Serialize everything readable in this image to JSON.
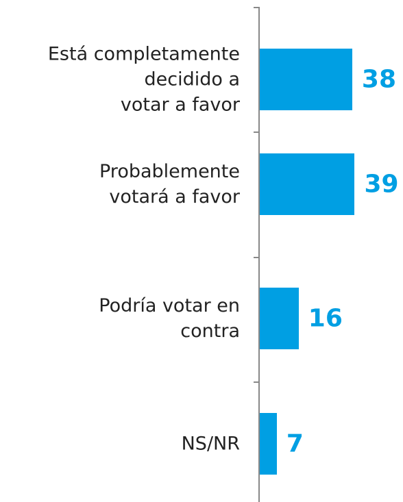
{
  "chart_data": {
    "type": "bar",
    "orientation": "horizontal",
    "color": "#009fe3",
    "categories": [
      "Está completamente\ndecidido a\nvotar a favor",
      "Probablemente\nvotará a favor",
      "Podría votar en\ncontra",
      "NS/NR"
    ],
    "values": [
      38,
      39,
      16,
      7
    ]
  }
}
